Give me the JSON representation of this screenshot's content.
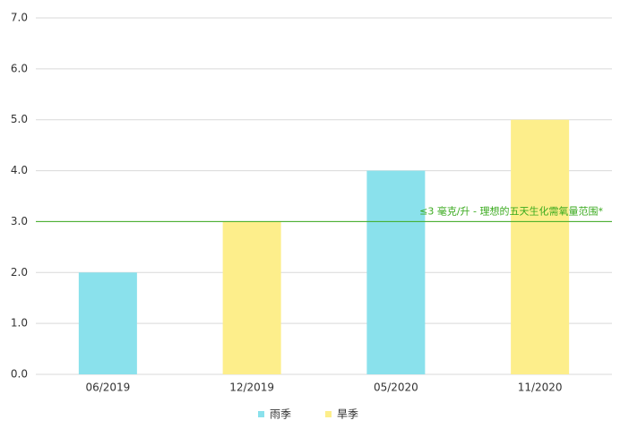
{
  "chart_data": {
    "type": "bar",
    "categories": [
      "06/2019",
      "12/2019",
      "05/2020",
      "11/2020"
    ],
    "series": [
      {
        "name": "雨季",
        "color": "#8ae1ec",
        "values": [
          2,
          null,
          4,
          null
        ]
      },
      {
        "name": "旱季",
        "color": "#fdee8b",
        "values": [
          null,
          3,
          null,
          5
        ]
      }
    ],
    "ylim": [
      0,
      7
    ],
    "yticks": [
      {
        "value": 0,
        "label": "0.0"
      },
      {
        "value": 1,
        "label": "1.0"
      },
      {
        "value": 2,
        "label": "2.0"
      },
      {
        "value": 3,
        "label": "3.0"
      },
      {
        "value": 4,
        "label": "4.0"
      },
      {
        "value": 5,
        "label": "5.0"
      },
      {
        "value": 6,
        "label": "6.0"
      },
      {
        "value": 7,
        "label": "7.0"
      }
    ],
    "grid": true,
    "reference_line": {
      "value": 3,
      "label": "≤3 毫克/升 - 理想的五天生化需氧量范围*",
      "color": "#3aaa1e"
    },
    "legend": "bottom"
  }
}
